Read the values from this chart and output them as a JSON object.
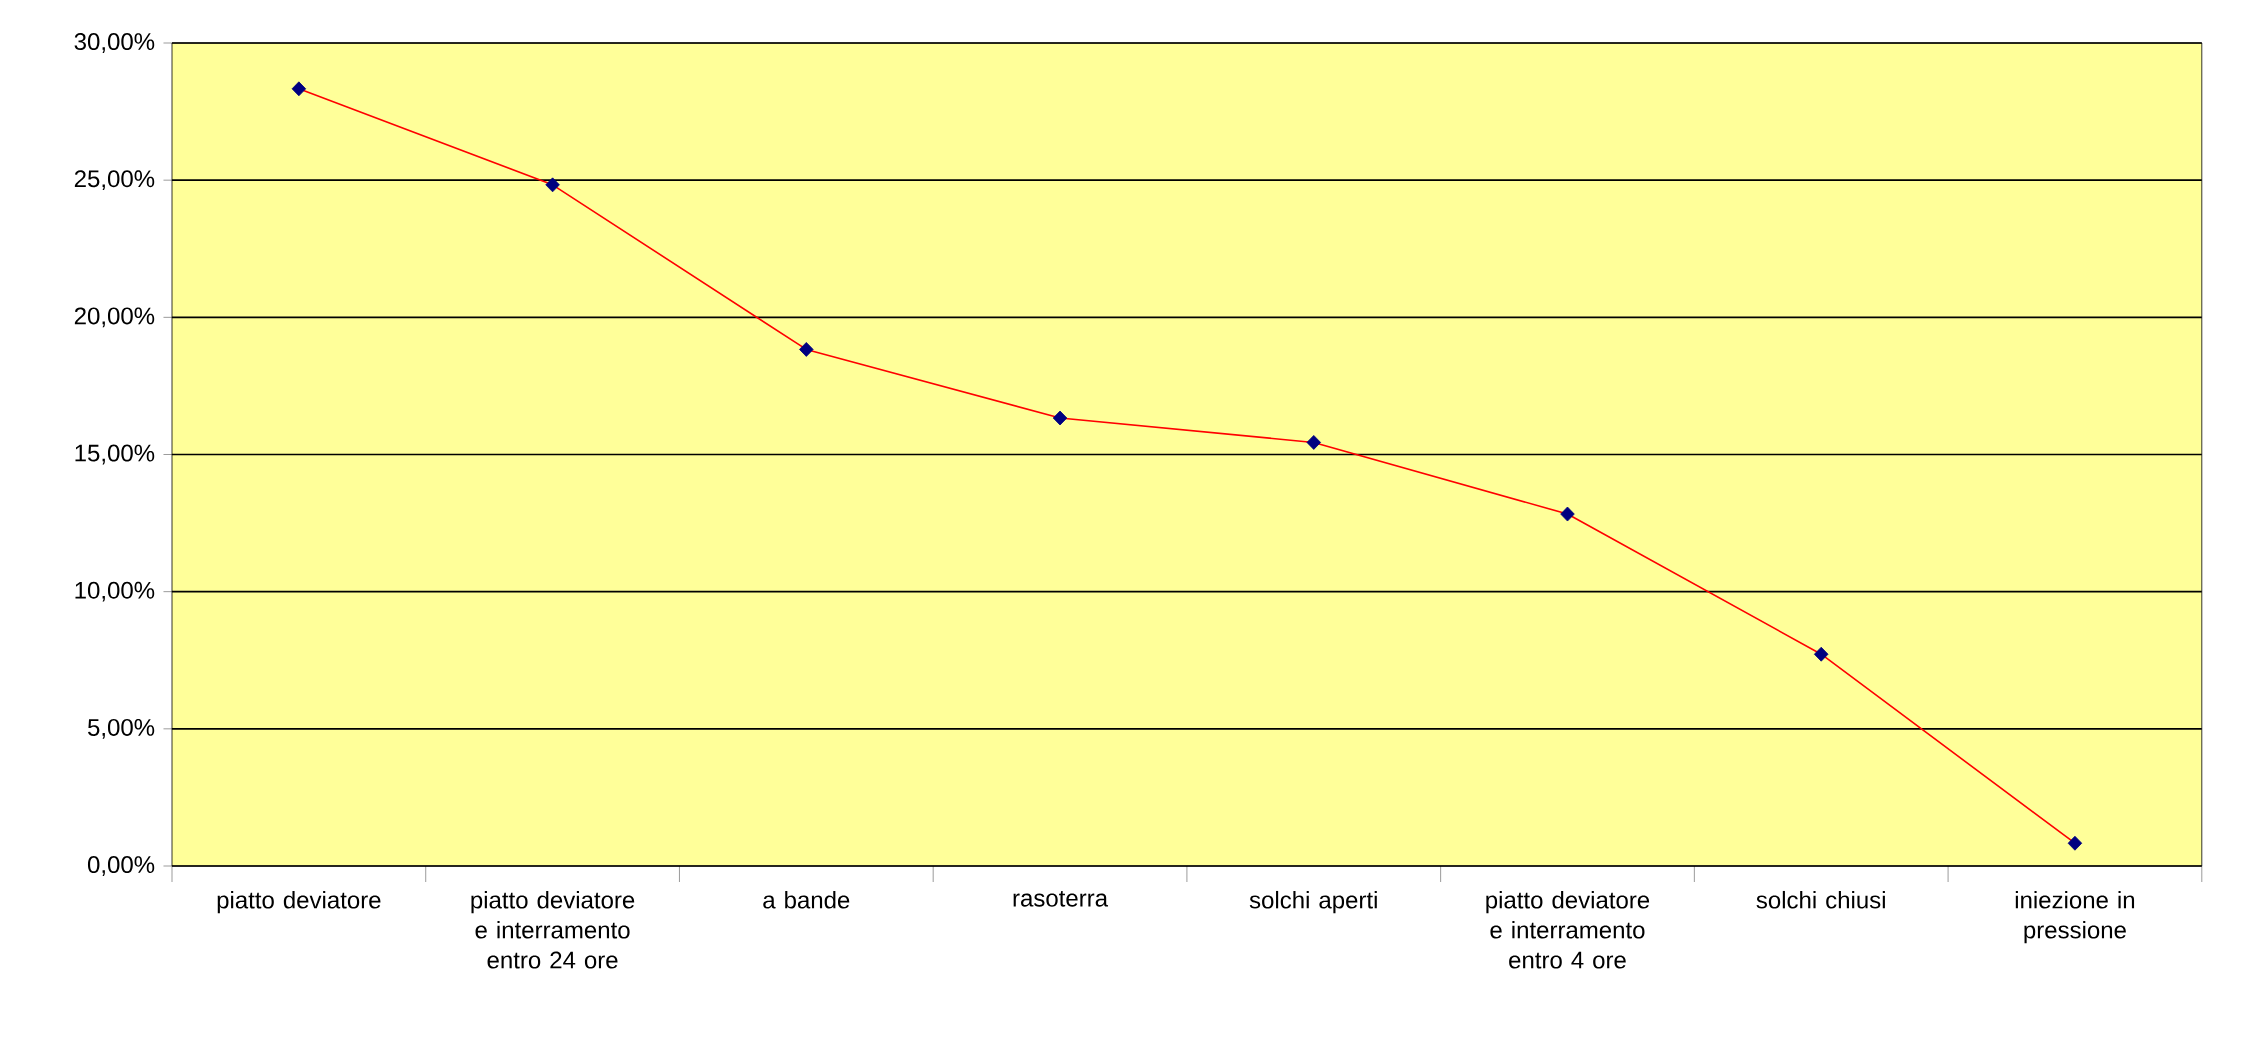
{
  "chart_data": {
    "type": "line",
    "categories": [
      "piatto deviatore",
      "piatto deviatore e interramento entro 24 ore",
      "a bande",
      "rasoterra",
      "solchi aperti",
      "piatto deviatore e interramento entro 4 ore",
      "solchi chiusi",
      "iniezione in pressione"
    ],
    "series": [
      {
        "color": "#ff0000",
        "colors": [
          "#000080",
          "#000080",
          "#000080",
          "#000080",
          "#000080",
          "#000080",
          "#000080",
          "#000080"
        ],
        "values": [
          28.33,
          24.83,
          18.83,
          16.33,
          15.44,
          12.83,
          7.72,
          0.83
        ]
      }
    ],
    "ylim": [
      0,
      30
    ],
    "yticks": [
      {
        "value": 0,
        "label": "0,00%"
      },
      {
        "value": 5,
        "label": "5,00%"
      },
      {
        "value": 10,
        "label": "10,00%"
      },
      {
        "value": 15,
        "label": "15,00%"
      },
      {
        "value": 20,
        "label": "20,00%"
      },
      {
        "value": 25,
        "label": "25,00%"
      },
      {
        "value": 30,
        "label": "30,00%"
      }
    ],
    "grid": "y",
    "marker": "diamond",
    "line_style": "solid"
  }
}
